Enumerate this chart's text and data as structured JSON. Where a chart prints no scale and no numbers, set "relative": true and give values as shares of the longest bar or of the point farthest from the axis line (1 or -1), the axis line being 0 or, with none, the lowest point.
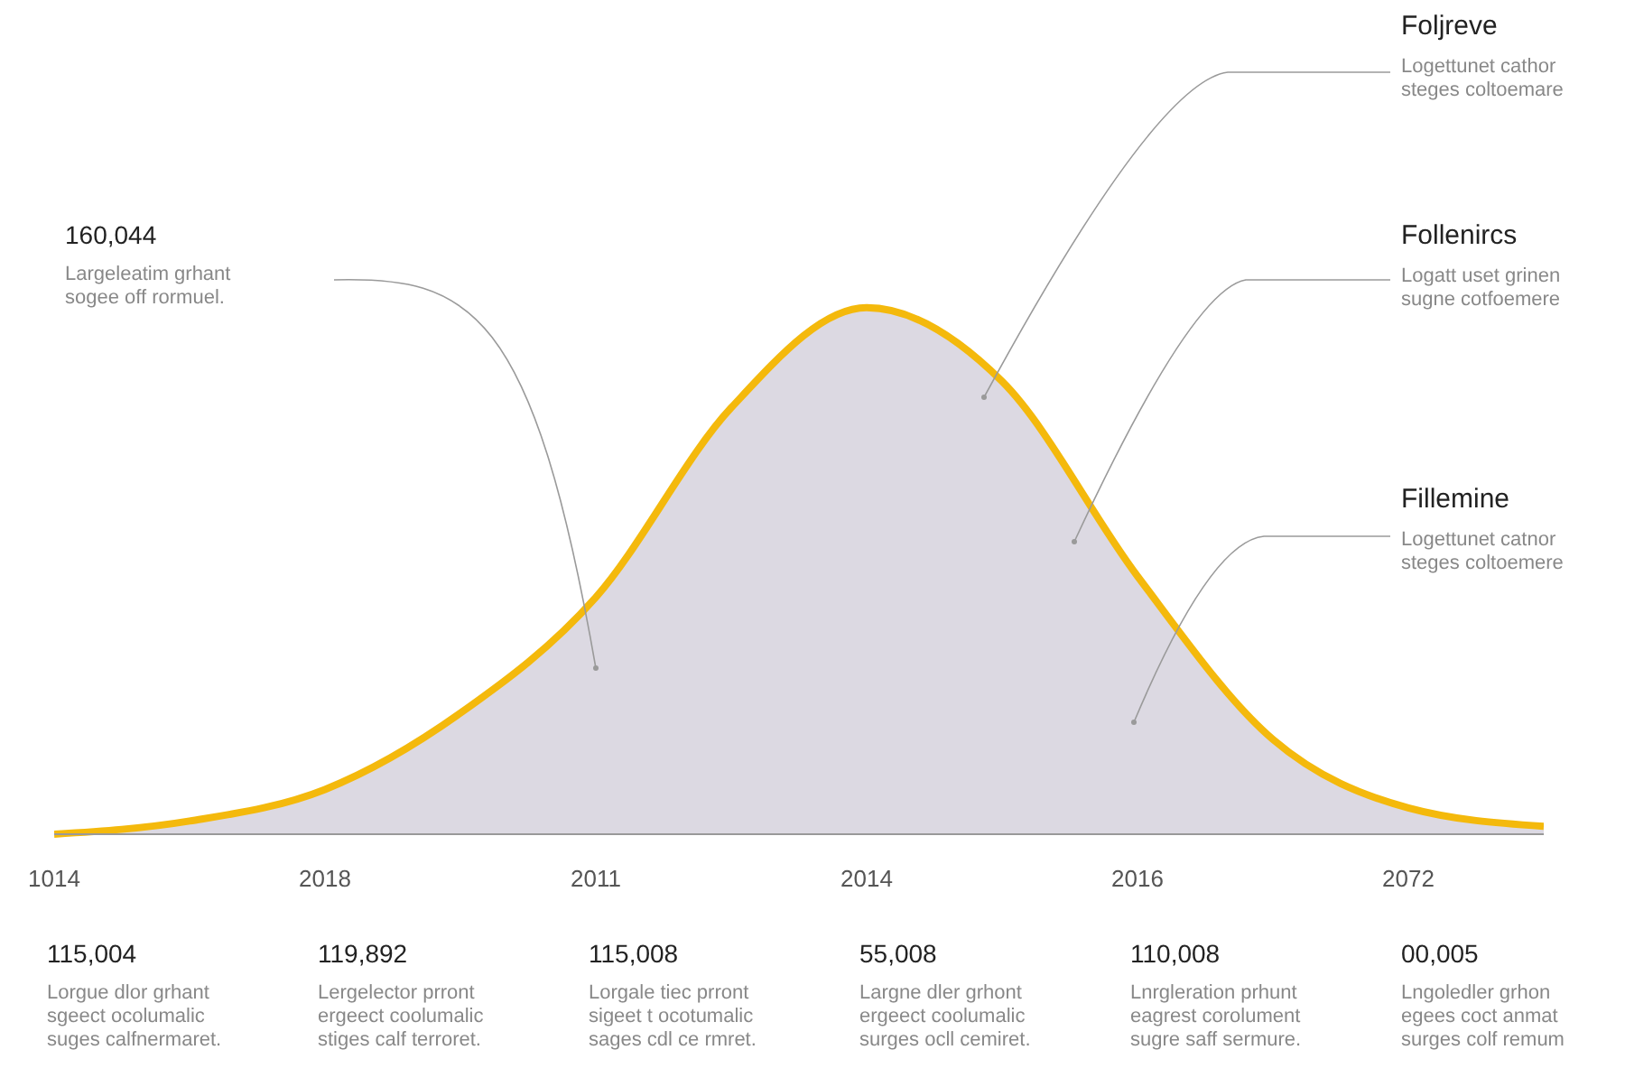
{
  "chart_data": {
    "type": "area",
    "relative": true,
    "categories": [
      "1014",
      null,
      "2018",
      null,
      "2011",
      null,
      "2014",
      null,
      "2016",
      null,
      "2072",
      null
    ],
    "series": [
      {
        "color": "#f4b90c",
        "values": [
          0,
          0.025,
          0.085,
          0.23,
          0.45,
          0.81,
          1,
          0.86,
          0.49,
          0.18,
          0.05,
          0.015
        ]
      }
    ],
    "annotations": [
      "160,044\nLargeleatim grhant\nsogee off rormuel.",
      "Foljreve\nLogettunet cathor\nsteges coltoemare",
      "Follenircs\nLogatt uset grinen\nsugne cotfoemere",
      "Fillemine\nLogettunet catnor\nsteges coltoemere",
      "115,004\nLorgue dlor grhant\nsgeect ocolumalic\nsuges calfnermaret.",
      "119,892\nLergelector prront\nergeect coolumalic\nstiges calf terroret.",
      "115,008\nLorgale tiec prront\nsigeet t ocotumalic\nsages cdl ce rmret.",
      "55,008\nLargne dler grhont\nergeect coolumalic\nsurges ocll cemiret.",
      "110,008\nLnrgleration prhunt\neagrest corolument\nsugre saff sermure.",
      "00,005\nLngoledler grhon\negees coct anmat\nsurges colf remum"
    ]
  }
}
